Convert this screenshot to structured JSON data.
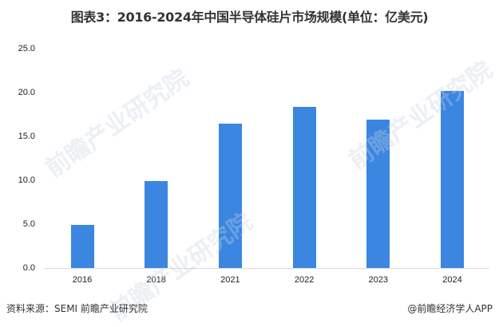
{
  "header": {
    "title": "图表3：2016-2024年中国半导体硅片市场规模(单位：亿美元)"
  },
  "footer": {
    "source": "资料来源：SEMI 前瞻产业研究院",
    "credit": "@前瞻经济学人APP"
  },
  "watermark": {
    "text": "前瞻产业研究院"
  },
  "colors": {
    "bar": "#3a86e0",
    "axis": "#d9d9d9"
  },
  "chart_data": {
    "type": "bar",
    "title": "图表3：2016-2024年中国半导体硅片市场规模(单位：亿美元)",
    "xlabel": "",
    "ylabel": "",
    "categories": [
      "2016",
      "2018",
      "2021",
      "2022",
      "2023",
      "2024"
    ],
    "values": [
      4.9,
      9.9,
      16.5,
      18.4,
      16.9,
      20.2
    ],
    "yticks": [
      "0.0",
      "5.0",
      "10.0",
      "15.0",
      "20.0",
      "25.0"
    ],
    "ylim": [
      0,
      25
    ],
    "grid": false,
    "legend": null
  }
}
